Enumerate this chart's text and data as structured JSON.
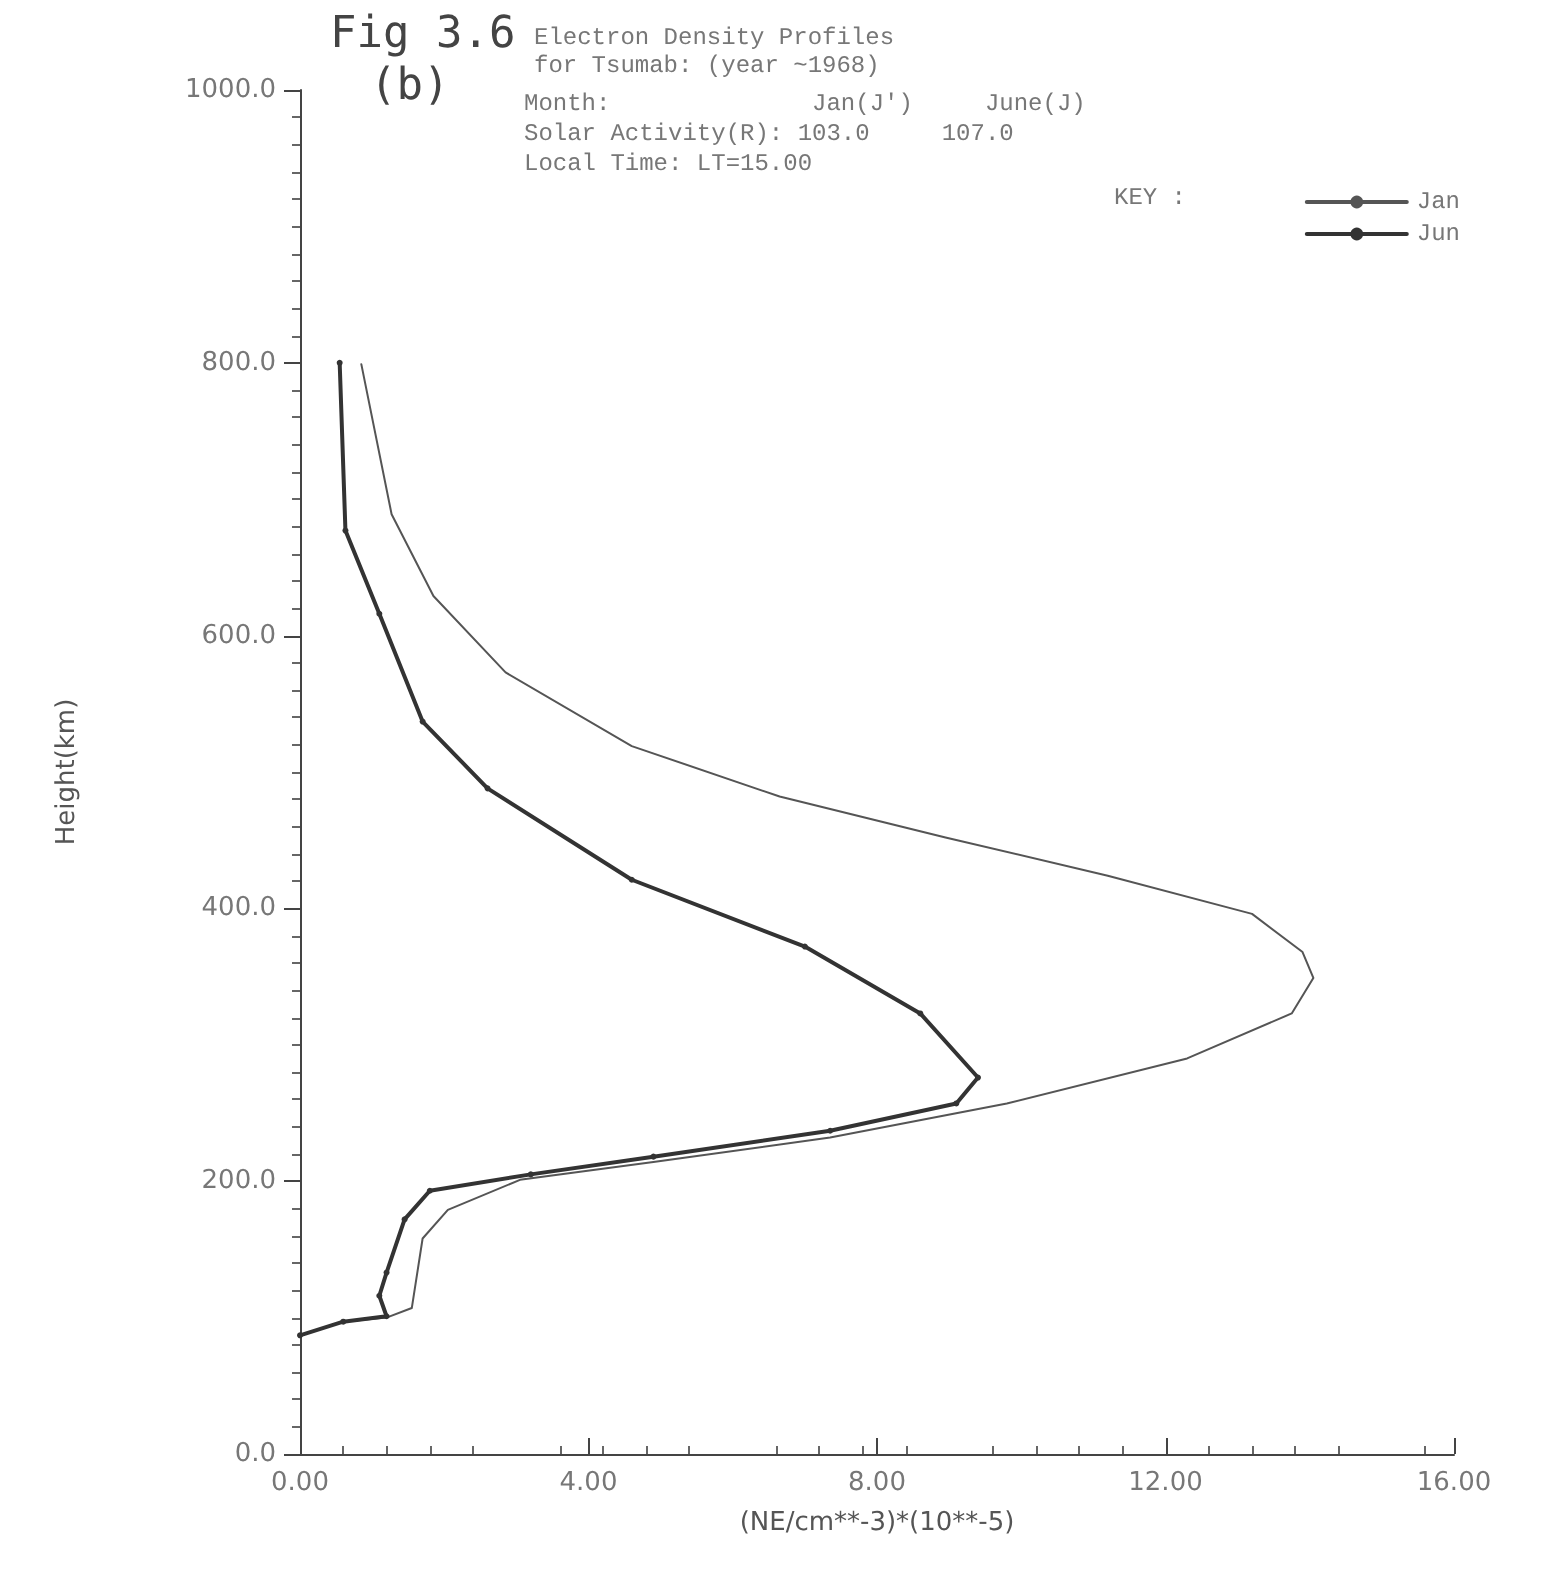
{
  "chart_data": {
    "type": "line",
    "title": "Electron Density Profiles",
    "subtitle": "for Tsumab: (year ~1968)",
    "xlabel": "(NE/cm**-3)*(10**-5)",
    "ylabel": "Height(km)",
    "legend_title": "KEY :",
    "annotations": [
      "Fig 3.6",
      "(b)",
      "Month:              Jan(J')     June(J)",
      "Solar Activity(R): 103.0     107.0",
      "Local Time: LT=15.00"
    ],
    "xlim": [
      0,
      16
    ],
    "xticks": [
      {
        "value": 0,
        "label": "0.00"
      },
      {
        "value": 4,
        "label": "4.00"
      },
      {
        "value": 8,
        "label": "8.00"
      },
      {
        "value": 12,
        "label": "12.00"
      },
      {
        "value": 16,
        "label": "16.00"
      }
    ],
    "ylim": [
      0,
      1000
    ],
    "yticks": [
      {
        "value": 0,
        "label": "0.0"
      },
      {
        "value": 200,
        "label": "200.0"
      },
      {
        "value": 400,
        "label": "400.0"
      },
      {
        "value": 600,
        "label": "600.0"
      },
      {
        "value": 800,
        "label": "800.0"
      },
      {
        "value": 1000,
        "label": "1000.0"
      }
    ],
    "grid": false,
    "legend": "top right",
    "series": [
      {
        "name": "Jan",
        "color": "#555555",
        "marker": "none",
        "line_style": "solid",
        "x": [
          0.85,
          1.27,
          1.85,
          2.85,
          4.6,
          6.65,
          8.95,
          11.2,
          13.2,
          13.9,
          14.05,
          13.75,
          12.3,
          9.8,
          7.35,
          4.9,
          3.05,
          2.05,
          1.7,
          1.55,
          1.2,
          0.6,
          0
        ],
        "values": [
          799,
          689,
          629,
          573,
          519,
          482,
          452,
          424,
          396,
          368,
          349,
          323,
          290,
          257,
          232,
          214,
          201,
          179,
          158,
          107,
          100,
          97,
          87
        ]
      },
      {
        "name": "Jun",
        "color": "#333333",
        "marker": "circle",
        "line_style": "solid",
        "x": [
          0.55,
          0.63,
          1.1,
          1.7,
          2.6,
          4.6,
          7.0,
          8.6,
          9.4,
          9.1,
          7.35,
          4.9,
          3.2,
          1.8,
          1.45,
          1.2,
          1.1,
          1.2,
          0.6,
          0
        ],
        "values": [
          800,
          677,
          616,
          537,
          488,
          421,
          372,
          323,
          276,
          257,
          237,
          218,
          205,
          193,
          172,
          133,
          116,
          101,
          97,
          87
        ]
      }
    ]
  }
}
